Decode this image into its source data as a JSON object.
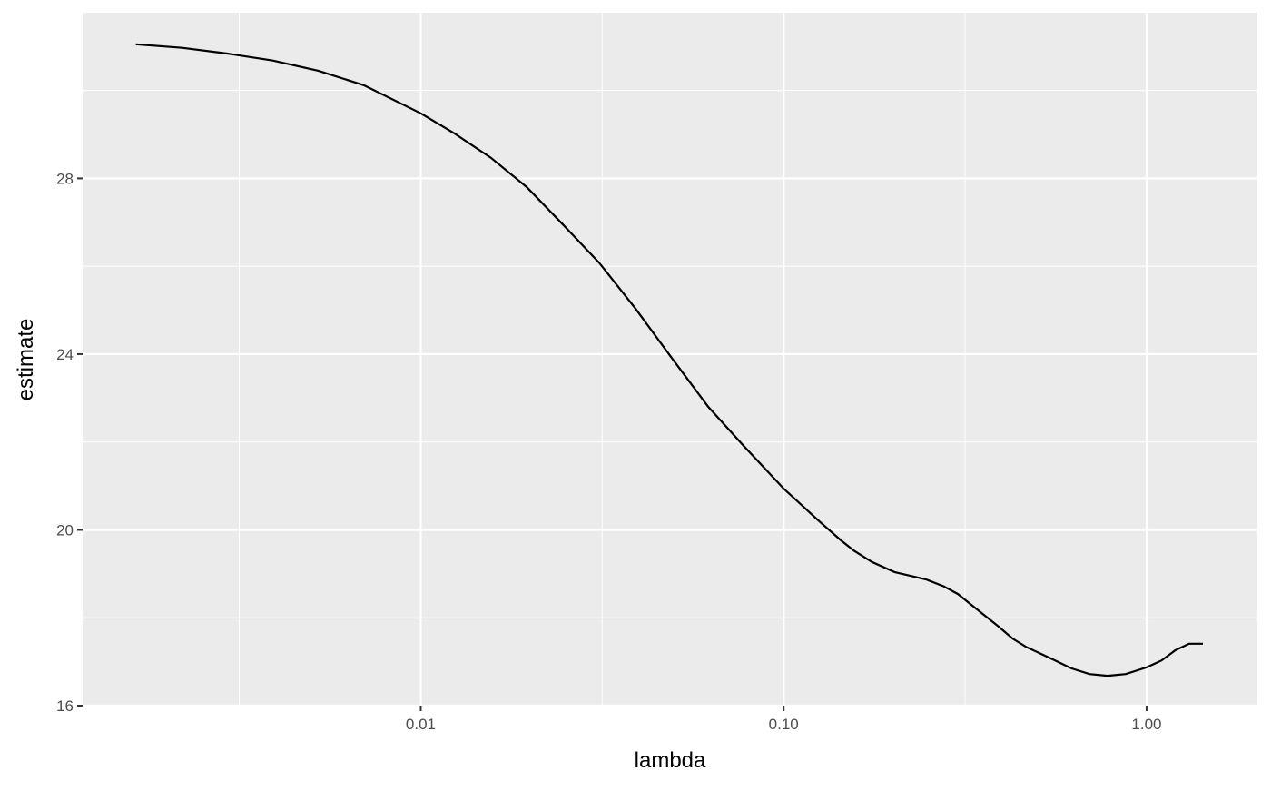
{
  "chart_data": {
    "type": "line",
    "title": "",
    "xlabel": "lambda",
    "ylabel": "estimate",
    "x_scale": "log10",
    "xlim": [
      0.00117,
      2.02
    ],
    "ylim": [
      16,
      31.77
    ],
    "x_ticks": [
      0.01,
      0.1,
      1.0
    ],
    "x_tick_labels": [
      "0.01",
      "0.10",
      "1.00"
    ],
    "x_minor_ticks": [
      0.00316,
      0.0316,
      0.316
    ],
    "y_ticks": [
      16,
      20,
      24,
      28
    ],
    "y_tick_labels": [
      "16",
      "20",
      "24",
      "28"
    ],
    "y_minor_ticks": [
      18,
      22,
      26,
      30
    ],
    "grid": true,
    "colors": {
      "panel": "#EBEBEB",
      "grid": "#FFFFFF",
      "line": "#000000",
      "tick_text": "#4D4D4D"
    },
    "series": [
      {
        "x": [
          0.00164,
          0.0022,
          0.00293,
          0.00391,
          0.00522,
          0.00696,
          0.01,
          0.0124,
          0.0156,
          0.0196,
          0.0247,
          0.0311,
          0.0391,
          0.0493,
          0.062,
          0.078,
          0.1,
          0.1237,
          0.143,
          0.156,
          0.175,
          0.202,
          0.247,
          0.277,
          0.302,
          0.339,
          0.391,
          0.427,
          0.465,
          0.553,
          0.62,
          0.696,
          0.781,
          0.876,
          1.0,
          1.1,
          1.2,
          1.31,
          1.43
        ],
        "y": [
          31.05,
          30.97,
          30.84,
          30.68,
          30.45,
          30.12,
          29.48,
          29.02,
          28.47,
          27.8,
          26.94,
          26.07,
          25.03,
          23.9,
          22.8,
          21.89,
          20.94,
          20.24,
          19.78,
          19.53,
          19.27,
          19.04,
          18.87,
          18.71,
          18.54,
          18.21,
          17.8,
          17.53,
          17.34,
          17.05,
          16.85,
          16.72,
          16.68,
          16.72,
          16.87,
          17.03,
          17.26,
          17.41,
          17.41
        ]
      }
    ]
  }
}
